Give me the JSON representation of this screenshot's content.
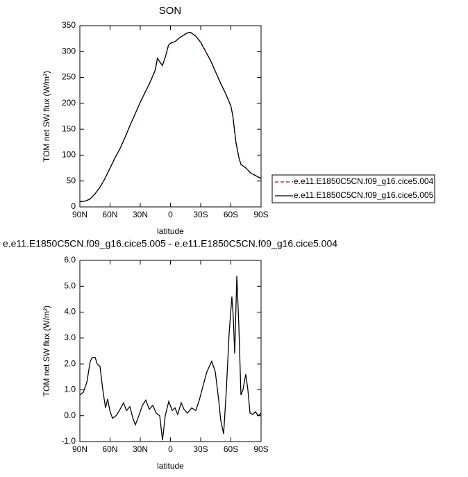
{
  "chart_data": [
    {
      "type": "line",
      "title": "SON",
      "x_label": "latitude",
      "y_label": "TOM net SW flux (W/m²)",
      "x": [
        90,
        85,
        80,
        75,
        70,
        65,
        60,
        55,
        50,
        45,
        40,
        35,
        30,
        25,
        20,
        15,
        13,
        8,
        5,
        2,
        0,
        -5,
        -10,
        -15,
        -18,
        -20,
        -25,
        -30,
        -35,
        -40,
        -45,
        -50,
        -55,
        -60,
        -62,
        -65,
        -68,
        -70,
        -75,
        -80,
        -85,
        -90
      ],
      "series": [
        {
          "name": "e.e11.E1850C5CN.f09_g16.cice5.004",
          "color": "#cc0000",
          "line_style": "dashed",
          "values": [
            10,
            11,
            15,
            25,
            38,
            55,
            75,
            95,
            113,
            135,
            158,
            180,
            202,
            222,
            241,
            265,
            287,
            273,
            290,
            312,
            316,
            320,
            328,
            334,
            337,
            337,
            330,
            318,
            300,
            282,
            260,
            238,
            218,
            195,
            175,
            124,
            95,
            82,
            75,
            65,
            60,
            55
          ]
        },
        {
          "name": "e.e11.E1850C5CN.f09_g16.cice5.005",
          "color": "#000000",
          "line_style": "solid",
          "values": [
            10,
            11,
            15,
            25,
            38,
            55,
            75,
            95,
            113,
            135,
            158,
            180,
            202,
            222,
            242,
            265,
            287,
            273,
            290,
            312,
            316,
            320,
            328,
            334,
            337,
            337,
            330,
            318,
            300,
            282,
            260,
            238,
            218,
            195,
            175,
            125,
            95,
            82,
            75,
            65,
            60,
            55
          ]
        }
      ],
      "xlim": [
        90,
        -90
      ],
      "xticks": [
        {
          "value": 90,
          "label": "90N"
        },
        {
          "value": 60,
          "label": "60N"
        },
        {
          "value": 30,
          "label": "30N"
        },
        0,
        {
          "value": -30,
          "label": "30S"
        },
        {
          "value": -60,
          "label": "60S"
        },
        {
          "value": -90,
          "label": "90S"
        }
      ],
      "ylim": [
        0,
        350
      ],
      "yticks": [
        0,
        50,
        100,
        150,
        200,
        250,
        300,
        350
      ],
      "legend": "right"
    },
    {
      "type": "line",
      "title": "e.e11.E1850C5CN.f09_g16.cice5.005 - e.e11.E1850C5CN.f09_g16.cice5.004",
      "x_label": "latitude",
      "y_label": "TOM net SW flux (W/m²)",
      "x": [
        90,
        86.6,
        83,
        79.7,
        77.6,
        74.8,
        72.8,
        70,
        67.2,
        64.5,
        62.4,
        60.3,
        57.6,
        54,
        50.7,
        46.6,
        43.8,
        40.3,
        36.9,
        34.8,
        31.4,
        27.9,
        24.5,
        21,
        17.6,
        14.1,
        10.7,
        7.9,
        5.2,
        1.7,
        -1.7,
        -4.5,
        -7.2,
        -10.7,
        -13.4,
        -16.9,
        -21,
        -25.2,
        -28.6,
        -32,
        -36.2,
        -41,
        -44.5,
        -47.9,
        -50,
        -52.8,
        -55.5,
        -58.3,
        -61,
        -62.4,
        -63.8,
        -65.9,
        -67.9,
        -70,
        -72,
        -74.8,
        -76.9,
        -79,
        -81.7,
        -84.5,
        -87.2,
        -90
      ],
      "series": [
        {
          "color": "#000000",
          "line_style": "solid",
          "values": [
            0.8,
            0.9,
            1.3,
            2.1,
            2.25,
            2.25,
            2.0,
            1.9,
            1.0,
            0.3,
            0.65,
            0.2,
            -0.1,
            0.0,
            0.2,
            0.5,
            0.2,
            0.35,
            -0.15,
            -0.35,
            0.0,
            0.4,
            0.6,
            0.25,
            0.4,
            0.1,
            0.0,
            -0.95,
            0.0,
            0.55,
            0.2,
            0.3,
            0.05,
            0.5,
            0.25,
            0.1,
            0.3,
            0.2,
            0.6,
            1.1,
            1.7,
            2.1,
            1.7,
            0.6,
            -0.2,
            -0.7,
            1.0,
            3.2,
            4.6,
            3.8,
            2.4,
            5.4,
            3.5,
            0.8,
            1.0,
            1.6,
            1.0,
            0.1,
            0.05,
            0.15,
            0.0,
            0.1
          ]
        }
      ],
      "xlim": [
        90,
        -90
      ],
      "xticks": [
        {
          "value": 90,
          "label": "90N"
        },
        {
          "value": 60,
          "label": "60N"
        },
        {
          "value": 30,
          "label": "30N"
        },
        0,
        {
          "value": -30,
          "label": "30S"
        },
        {
          "value": -60,
          "label": "60S"
        },
        {
          "value": -90,
          "label": "90S"
        }
      ],
      "ylim": [
        -1,
        6
      ],
      "yticks": [
        {
          "value": -1,
          "label": "-1.0"
        },
        {
          "value": 0,
          "label": "0.0"
        },
        {
          "value": 1,
          "label": "1.0"
        },
        {
          "value": 2,
          "label": "2.0"
        },
        {
          "value": 3,
          "label": "3.0"
        },
        {
          "value": 4,
          "label": "4.0"
        },
        {
          "value": 5,
          "label": "5.0"
        },
        {
          "value": 6,
          "label": "6.0"
        }
      ]
    }
  ]
}
